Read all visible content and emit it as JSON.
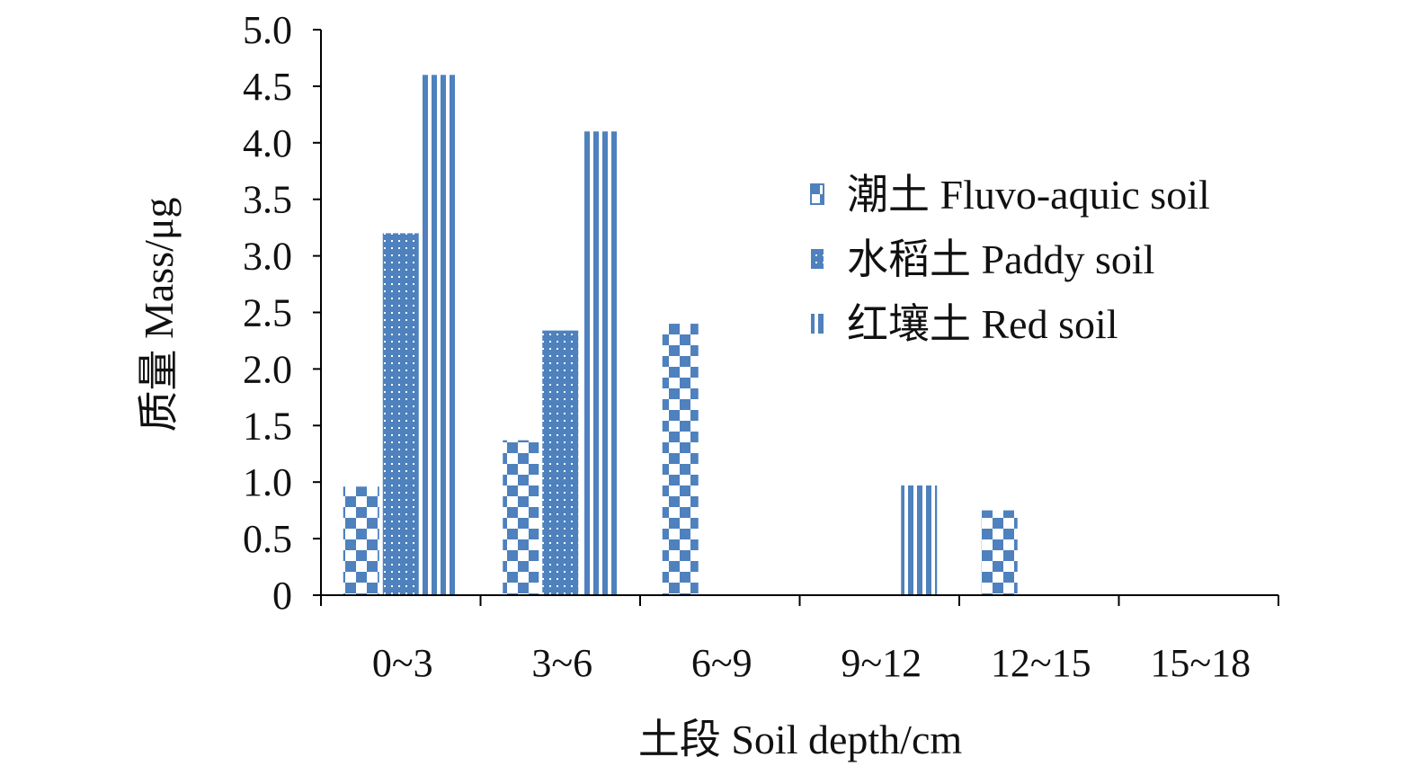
{
  "chart_data": {
    "type": "bar",
    "categories": [
      "0~3",
      "3~6",
      "6~9",
      "9~12",
      "12~15",
      "15~18"
    ],
    "series": [
      {
        "name": "潮土 Fluvo-aquic soil",
        "pattern": "checker",
        "color": "#4e81bd",
        "values": [
          0.96,
          1.37,
          2.4,
          0,
          0.75,
          0
        ]
      },
      {
        "name": "水稻土 Paddy soil",
        "pattern": "dots",
        "color": "#4e81bd",
        "values": [
          3.2,
          2.34,
          0,
          0,
          0,
          0
        ]
      },
      {
        "name": "红壤土 Red soil",
        "pattern": "vstripes",
        "color": "#4e81bd",
        "values": [
          4.6,
          4.1,
          0,
          0.97,
          0,
          0
        ]
      }
    ],
    "yticks": [
      "0",
      "0.5",
      "1.0",
      "1.5",
      "2.0",
      "2.5",
      "3.0",
      "3.5",
      "4.0",
      "4.5",
      "5.0"
    ],
    "ylim": [
      0,
      5
    ],
    "xlabel": "土段 Soil depth/cm",
    "ylabel": "质量 Mass/μg",
    "legend_position": "right",
    "grid": false
  }
}
